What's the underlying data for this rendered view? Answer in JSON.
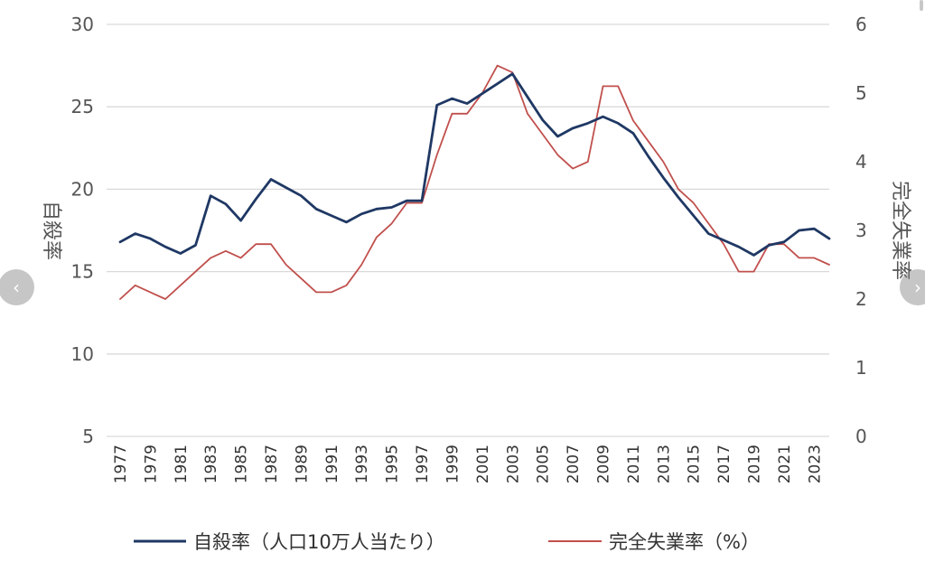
{
  "chart_data": {
    "type": "line",
    "ylabel_left": "自殺率",
    "ylabel_right": "完全失業率",
    "yleft": {
      "min": 5,
      "max": 30,
      "ticks": [
        5,
        10,
        15,
        20,
        25,
        30
      ]
    },
    "yright": {
      "min": 0,
      "max": 6,
      "ticks": [
        0,
        1,
        2,
        3,
        4,
        5,
        6
      ]
    },
    "x": [
      1977,
      1978,
      1979,
      1980,
      1981,
      1982,
      1983,
      1984,
      1985,
      1986,
      1987,
      1988,
      1989,
      1990,
      1991,
      1992,
      1993,
      1994,
      1995,
      1996,
      1997,
      1998,
      1999,
      2000,
      2001,
      2002,
      2003,
      2004,
      2005,
      2006,
      2007,
      2008,
      2009,
      2010,
      2011,
      2012,
      2013,
      2014,
      2015,
      2016,
      2017,
      2018,
      2019,
      2020,
      2021,
      2022,
      2023,
      2024
    ],
    "xtick_labels": [
      "1977",
      "1979",
      "1981",
      "1983",
      "1985",
      "1987",
      "1989",
      "1991",
      "1993",
      "1995",
      "1997",
      "1999",
      "2001",
      "2003",
      "2005",
      "2007",
      "2009",
      "2011",
      "2013",
      "2015",
      "2017",
      "2019",
      "2021",
      "2023"
    ],
    "grid": true,
    "legend_position": "bottom",
    "series": [
      {
        "name": "自殺率（人口10万人当たり）",
        "axis": "left",
        "color": "#1f3864",
        "values": [
          16.8,
          17.3,
          17.0,
          16.5,
          16.1,
          16.6,
          19.6,
          19.1,
          18.1,
          19.4,
          20.6,
          20.1,
          19.6,
          18.8,
          18.4,
          18.0,
          18.5,
          18.8,
          18.9,
          19.3,
          19.3,
          25.1,
          25.5,
          25.2,
          25.8,
          26.4,
          27.0,
          25.6,
          24.2,
          23.2,
          23.7,
          24.0,
          24.4,
          24.0,
          23.4,
          22.0,
          20.7,
          19.5,
          18.4,
          17.3,
          16.9,
          16.5,
          16.0,
          16.6,
          16.8,
          17.5,
          17.6,
          17.0
        ]
      },
      {
        "name": "完全失業率（%）",
        "axis": "right",
        "color": "#c0504d",
        "values": [
          2.0,
          2.2,
          2.1,
          2.0,
          2.2,
          2.4,
          2.6,
          2.7,
          2.6,
          2.8,
          2.8,
          2.5,
          2.3,
          2.1,
          2.1,
          2.2,
          2.5,
          2.9,
          3.1,
          3.4,
          3.4,
          4.1,
          4.7,
          4.7,
          5.0,
          5.4,
          5.3,
          4.7,
          4.4,
          4.1,
          3.9,
          4.0,
          5.1,
          5.1,
          4.6,
          4.3,
          4.0,
          3.6,
          3.4,
          3.1,
          2.8,
          2.4,
          2.4,
          2.8,
          2.8,
          2.6,
          2.6,
          2.5
        ]
      }
    ]
  },
  "nav": {
    "prev_label": "‹",
    "next_label": "›"
  }
}
